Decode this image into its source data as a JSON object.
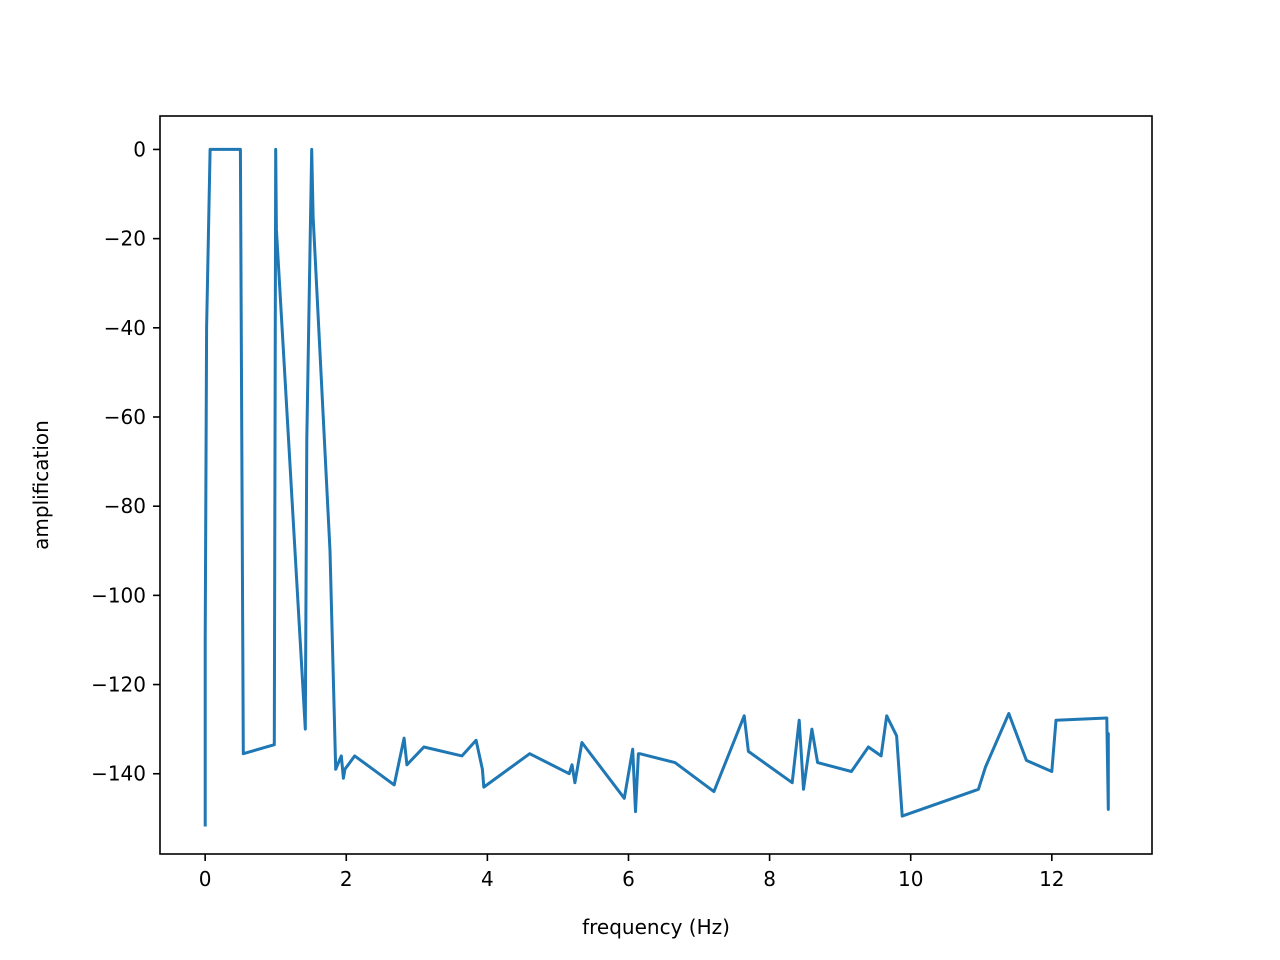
{
  "chart_data": {
    "type": "line",
    "title": "",
    "xlabel": "frequency (Hz)",
    "ylabel": "amplification",
    "xlim": [
      -0.64,
      13.42
    ],
    "ylim": [
      -158,
      7.5
    ],
    "x_ticks": [
      0,
      2,
      4,
      6,
      8,
      10,
      12
    ],
    "x_tick_labels": [
      "0",
      "2",
      "4",
      "6",
      "8",
      "10",
      "12"
    ],
    "y_ticks": [
      0,
      -20,
      -40,
      -60,
      -80,
      -100,
      -120,
      -140
    ],
    "y_tick_labels": [
      "0",
      "−20",
      "−40",
      "−60",
      "−80",
      "−100",
      "−120",
      "−140"
    ],
    "grid": false,
    "color": "#1f77b4",
    "series": [
      {
        "x": [
          0.0,
          0.0,
          0.0,
          0.02,
          0.07,
          0.12,
          0.5,
          0.54,
          0.98,
          1.0,
          1.01,
          1.42,
          1.44,
          1.51,
          1.53,
          1.77,
          1.85,
          1.93,
          1.96,
          1.98,
          2.12,
          2.68,
          2.82,
          2.86,
          3.1,
          3.64,
          3.84,
          3.93,
          3.95,
          4.6,
          5.16,
          5.2,
          5.24,
          5.34,
          5.94,
          6.06,
          6.1,
          6.14,
          6.16,
          6.66,
          7.21,
          7.64,
          7.7,
          8.32,
          8.42,
          8.48,
          8.6,
          8.68,
          9.16,
          9.4,
          9.58,
          9.66,
          9.8,
          9.88,
          10.96,
          11.06,
          11.39,
          11.64,
          12.0,
          12.06,
          12.78,
          12.8,
          12.8,
          12.8,
          12.8
        ],
        "y": [
          -151.5,
          -130,
          -110,
          -40,
          0,
          0,
          0,
          -135.5,
          -133.5,
          0,
          -18,
          -130,
          -65,
          0,
          -15,
          -90,
          -139,
          -136,
          -141,
          -139,
          -136,
          -142.5,
          -132,
          -138,
          -134,
          -136,
          -132.5,
          -139,
          -143,
          -135.5,
          -140,
          -138,
          -142,
          -133,
          -145.5,
          -134.5,
          -148.5,
          -135.5,
          -135.5,
          -137.5,
          -144,
          -127,
          -135,
          -142,
          -128,
          -143.5,
          -130,
          -137.5,
          -139.5,
          -134,
          -136,
          -127,
          -131.5,
          -149.5,
          -143.5,
          -138.5,
          -126.5,
          -137,
          -139.5,
          -128,
          -127.5,
          -148,
          -131,
          -148,
          -143
        ]
      }
    ]
  }
}
